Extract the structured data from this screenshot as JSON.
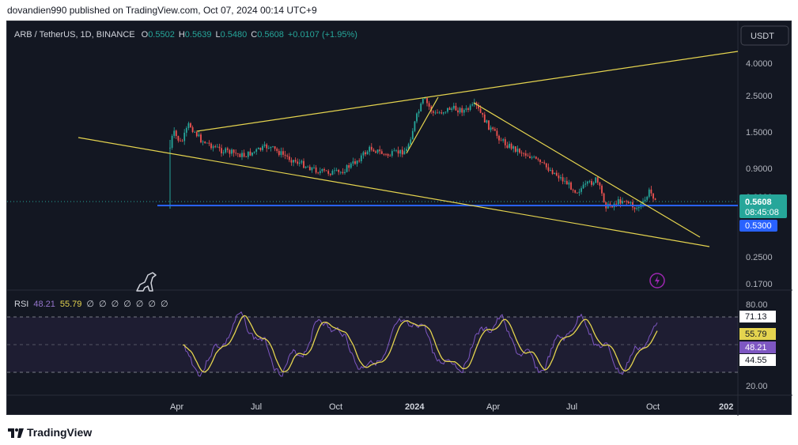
{
  "publish_line": "dovandien990 published on TradingView.com, Oct 07, 2024 00:14 UTC+9",
  "symbol_line": {
    "symbol": "ARB / TetherUS, 1D, BINANCE",
    "open_label": "O",
    "open": "0.5502",
    "high_label": "H",
    "high": "0.5639",
    "low_label": "L",
    "low": "0.5480",
    "close_label": "C",
    "close": "0.5608",
    "change": "+0.0107 (+1.95%)"
  },
  "currency_button": "USDT",
  "price_axis": [
    "4.0000",
    "2.5000",
    "1.5000",
    "0.9000",
    "0.6000",
    "0.2500",
    "0.1700"
  ],
  "tags": {
    "last_price": "0.5608",
    "countdown": "08:45:08",
    "level": "0.5300"
  },
  "rsi": {
    "label": "RSI",
    "value": "48.21",
    "ma_value": "55.79",
    "params": [
      "∅",
      "∅",
      "∅",
      "∅",
      "∅",
      "∅",
      "∅"
    ],
    "axis": [
      "80.00",
      "20.00"
    ],
    "tags": [
      "71.13",
      "55.79",
      "48.21",
      "44.55"
    ]
  },
  "time_axis": [
    "Apr",
    "Jul",
    "Oct",
    "2024",
    "Apr",
    "Jul",
    "Oct",
    "202"
  ],
  "footer_brand": "TradingView",
  "colors": {
    "background": "#131722",
    "up": "#26a69a",
    "down": "#ef5350",
    "trendline": "#e5d44f",
    "level_line": "#2962ff",
    "rsi_line": "#7e57c2",
    "rsi_ma": "#e5d44f"
  }
}
